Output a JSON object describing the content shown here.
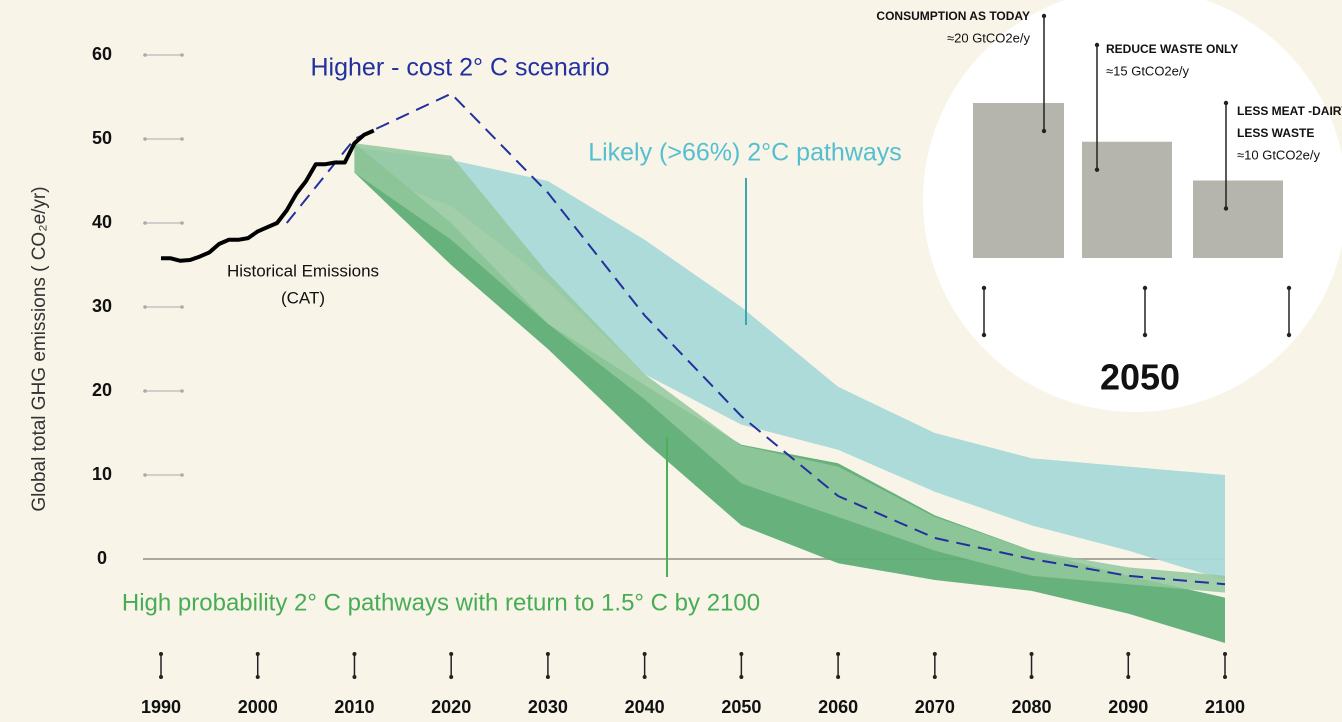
{
  "chart_data": [
    {
      "type": "line",
      "ylabel": "Global total GHG emissions ( CO₂e/yr)",
      "xlim": [
        1990,
        2100
      ],
      "xticks": [
        1990,
        2000,
        2010,
        2020,
        2030,
        2040,
        2050,
        2060,
        2070,
        2080,
        2090,
        2100
      ],
      "ylim": [
        -10,
        60
      ],
      "yticks": [
        0,
        10,
        20,
        30,
        40,
        50,
        60
      ],
      "bands": [
        {
          "name": "Likely (>66%) 2°C pathways",
          "color": "#a9d9d8",
          "x": [
            2010,
            2020,
            2030,
            2040,
            2050,
            2060,
            2070,
            2080,
            2090,
            2100
          ],
          "upper": [
            49,
            47.5,
            45,
            38,
            30,
            20.5,
            15,
            12,
            11,
            10
          ],
          "lower": [
            46.5,
            42,
            33,
            22,
            16,
            13,
            8,
            4,
            1,
            -2.5
          ]
        },
        {
          "name": "High probability 2° C pathways with return to 1.5° C by 2100",
          "color": "#5fae76",
          "x": [
            2010,
            2020,
            2030,
            2040,
            2050,
            2060,
            2070,
            2080,
            2090,
            2100
          ],
          "upper": [
            49.5,
            40,
            28,
            20.7,
            13.6,
            11.4,
            5.2,
            1,
            -2,
            -4.6
          ],
          "lower": [
            46,
            35,
            25,
            14,
            4,
            -0.5,
            -2.5,
            -3.8,
            -6.5,
            -10
          ]
        },
        {
          "color": "#93c89d",
          "x": [
            2010,
            2020,
            2030,
            2040,
            2050,
            2060,
            2070,
            2080,
            2090,
            2100
          ],
          "upper": [
            49.5,
            48,
            34,
            22,
            13.5,
            11,
            5,
            1,
            -1,
            -2
          ],
          "lower": [
            46,
            38,
            28,
            19,
            9,
            5,
            1,
            -2,
            -3,
            -4
          ]
        }
      ],
      "series": [
        {
          "name": "Higher - cost 2° C scenario",
          "color": "#23309e",
          "dashed": true,
          "x": [
            2003,
            2010,
            2020,
            2030,
            2040,
            2050,
            2060,
            2070,
            2080,
            2090,
            2100
          ],
          "values": [
            40,
            50,
            55.4,
            43.6,
            29,
            17,
            7.5,
            2.5,
            0,
            -2,
            -3
          ]
        },
        {
          "name": [
            "Historical Emissions",
            "(CAT)"
          ],
          "color": "#000000",
          "dashed": false,
          "x": [
            1990,
            1991,
            1992,
            1993,
            1994,
            1995,
            1996,
            1997,
            1998,
            1999,
            2000,
            2001,
            2002,
            2003,
            2004,
            2005,
            2006,
            2007,
            2008,
            2009,
            2010,
            2011,
            2012
          ],
          "values": [
            35.8,
            35.8,
            35.5,
            35.6,
            36,
            36.5,
            37.5,
            38,
            38,
            38.2,
            39,
            39.5,
            40,
            41.5,
            43.5,
            45,
            47,
            47,
            47.2,
            47.2,
            49.5,
            50.5,
            51
          ]
        }
      ]
    },
    {
      "type": "bar",
      "title": "2050",
      "color": "#b5b5ad",
      "categories": [
        [
          "CONSUMPTION AS TODAY"
        ],
        [
          "REDUCE WASTE ONLY"
        ],
        [
          "LESS MEAT -DAIRY",
          "LESS WASTE"
        ]
      ],
      "values": [
        20,
        15,
        10
      ],
      "value_labels": [
        "≈20 GtCO2e/y",
        "≈15 GtCO2e/y",
        "≈10 GtCO2e/y"
      ]
    }
  ]
}
